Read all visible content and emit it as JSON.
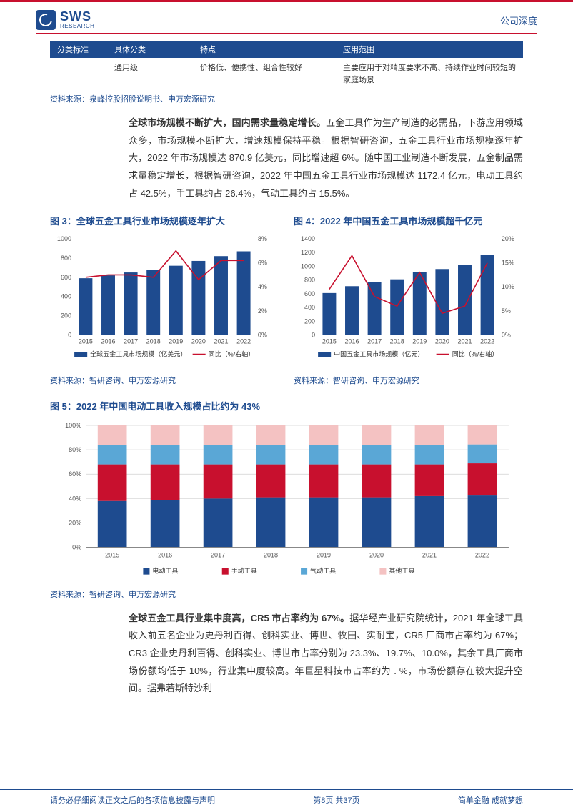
{
  "header": {
    "logo_text": "SWS",
    "logo_sub": "RESEARCH",
    "doc_type": "公司深度"
  },
  "table": {
    "headers": [
      "分类标准",
      "具体分类",
      "特点",
      "应用范围"
    ],
    "row": {
      "c1": "",
      "c2": "通用级",
      "c3": "价格低、便携性、组合性较好",
      "c4": "主要应用于对精度要求不高、持续作业时间较短的家庭场景"
    },
    "source": "资料来源：泉峰控股招股说明书、申万宏源研究"
  },
  "para1": {
    "bold": "全球市场规模不断扩大，国内需求量稳定增长。",
    "rest": "五金工具作为生产制造的必需品，下游应用领域众多，市场规模不断扩大，增速规模保持平稳。根据智研咨询，五金工具行业市场规模逐年扩大，2022 年市场规模达 870.9 亿美元，同比增速超 6%。随中国工业制造不断发展，五金制品需求量稳定增长，根据智研咨询，2022 年中国五金工具行业市场规模达 1172.4 亿元，电动工具约占 42.5%，手工具约占 26.4%，气动工具约占 15.5%。"
  },
  "fig3": {
    "title": "图 3：全球五金工具行业市场规模逐年扩大",
    "type": "bar-line-dual-axis",
    "categories": [
      "2015",
      "2016",
      "2017",
      "2018",
      "2019",
      "2020",
      "2021",
      "2022"
    ],
    "bar_values": [
      590,
      620,
      650,
      680,
      720,
      770,
      820,
      870
    ],
    "line_values": [
      4.8,
      5.0,
      5.0,
      4.8,
      7.0,
      4.6,
      6.2,
      6.2
    ],
    "y1_max": 1000,
    "y1_step": 200,
    "y2_max": 8,
    "y2_step": 2,
    "y2_suffix": "%",
    "bar_color": "#1e4b8f",
    "line_color": "#c8102e",
    "axis_color": "#888888",
    "font_size": 9,
    "legend": [
      "全球五金工具市场规模（亿美元）",
      "同比（%/右轴）"
    ],
    "source": "资料来源：智研咨询、申万宏源研究"
  },
  "fig4": {
    "title": "图 4：2022 年中国五金工具市场规模超千亿元",
    "type": "bar-line-dual-axis",
    "categories": [
      "2015",
      "2016",
      "2017",
      "2018",
      "2019",
      "2020",
      "2021",
      "2022"
    ],
    "bar_values": [
      610,
      710,
      770,
      810,
      920,
      960,
      1020,
      1170
    ],
    "line_values": [
      9.5,
      16.5,
      8.0,
      6.0,
      13.0,
      4.5,
      6.0,
      15.0
    ],
    "y1_max": 1400,
    "y1_step": 200,
    "y2_max": 20,
    "y2_step": 5,
    "y2_suffix": "%",
    "bar_color": "#1e4b8f",
    "line_color": "#c8102e",
    "axis_color": "#888888",
    "font_size": 9,
    "legend": [
      "中国五金工具市场规模（亿元）",
      "同比（%/右轴）"
    ],
    "source": "资料来源：智研咨询、申万宏源研究"
  },
  "fig5": {
    "title": "图 5：2022 年中国电动工具收入规模占比约为 43%",
    "type": "stacked-bar-100",
    "categories": [
      "2015",
      "2016",
      "2017",
      "2018",
      "2019",
      "2020",
      "2021",
      "2022"
    ],
    "series": [
      {
        "name": "电动工具",
        "color": "#1e4b8f",
        "values": [
          38,
          39,
          40,
          41,
          41,
          41,
          42,
          42.5
        ]
      },
      {
        "name": "手动工具",
        "color": "#c8102e",
        "values": [
          30,
          29,
          28,
          27,
          27,
          27,
          26,
          26.4
        ]
      },
      {
        "name": "气动工具",
        "color": "#5aa7d6",
        "values": [
          16,
          16,
          16,
          16,
          16,
          16,
          16,
          15.5
        ]
      },
      {
        "name": "其他工具",
        "color": "#f4c2c2",
        "values": [
          16,
          16,
          16,
          16,
          16,
          16,
          16,
          15.6
        ]
      }
    ],
    "y_max": 100,
    "y_step": 20,
    "y_suffix": "%",
    "axis_color": "#888888",
    "grid_color": "#d0d0d0",
    "font_size": 9,
    "source": "资料来源：智研咨询、申万宏源研究"
  },
  "para2": {
    "bold": "全球五金工具行业集中度高，CR5 市占率约为 67%。",
    "rest": "据华经产业研究院统计，2021 年全球工具收入前五名企业为史丹利百得、创科实业、博世、牧田、实耐宝，CR5 厂商市占率约为 67%；CR3 企业史丹利百得、创科实业、博世市占率分别为 23.3%、19.7%、10.0%，其余工具厂商市场份额均低于 10%，行业集中度较高。年巨星科技市占率约为 . %，市场份额存在较大提升空间。据弗若斯特沙利"
  },
  "footer": {
    "left": "请务必仔细阅读正文之后的各项信息披露与声明",
    "center": "第8页 共37页",
    "right": "简单金融 成就梦想"
  }
}
